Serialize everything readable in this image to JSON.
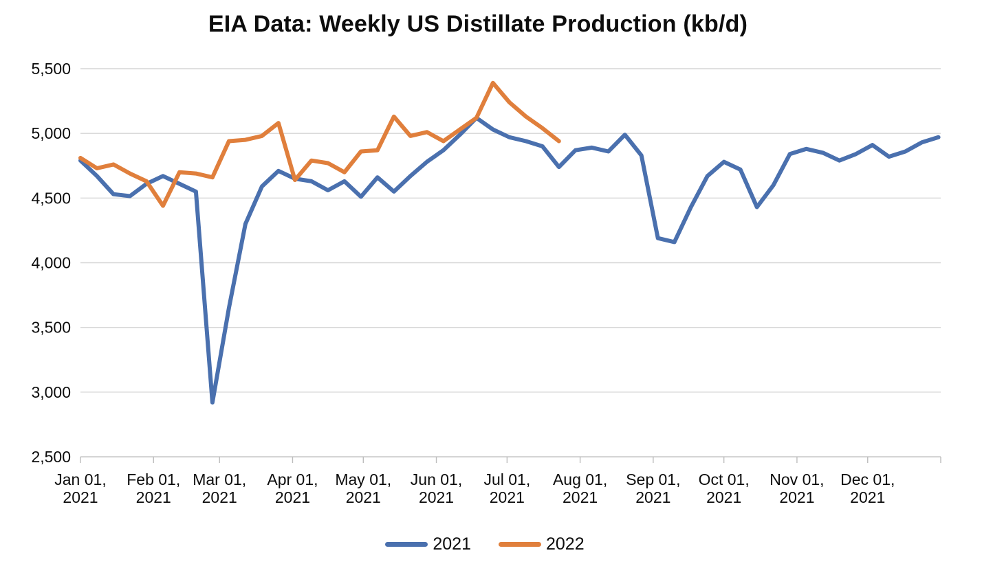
{
  "title": "EIA Data: Weekly US Distillate Production (kb/d)",
  "colors": {
    "series_2021": "#4A70AE",
    "series_2022": "#E07F3C",
    "gridline": "#D6D6D6",
    "axis_line": "#C6C6C6",
    "tick_mark": "#BDBDBD",
    "text": "#0d0d0d",
    "background": "#FFFFFF"
  },
  "chart_data": {
    "type": "line",
    "title": "EIA Data: Weekly US Distillate Production (kb/d)",
    "ylabel": "",
    "xlabel": "",
    "y_axis": {
      "min": 2500,
      "max": 5500,
      "grid": true,
      "ticks": [
        {
          "value": 5500,
          "label": "5,500"
        },
        {
          "value": 5000,
          "label": "5,000"
        },
        {
          "value": 4500,
          "label": "4,500"
        },
        {
          "value": 4000,
          "label": "4,000"
        },
        {
          "value": 3500,
          "label": "3,500"
        },
        {
          "value": 3000,
          "label": "3,000"
        },
        {
          "value": 2500,
          "label": "2,500"
        }
      ]
    },
    "x_axis": {
      "unit": "weeks, plotted by day-of-year",
      "axis_start_day": 0,
      "axis_end_day": 365,
      "ticks": [
        {
          "line1": "Jan 01,",
          "line2": "2021",
          "day": 0
        },
        {
          "line1": "Feb 01,",
          "line2": "2021",
          "day": 31
        },
        {
          "line1": "Mar 01,",
          "line2": "2021",
          "day": 59
        },
        {
          "line1": "Apr 01,",
          "line2": "2021",
          "day": 90
        },
        {
          "line1": "May 01,",
          "line2": "2021",
          "day": 120
        },
        {
          "line1": "Jun 01,",
          "line2": "2021",
          "day": 151
        },
        {
          "line1": "Jul 01,",
          "line2": "2021",
          "day": 181
        },
        {
          "line1": "Aug 01,",
          "line2": "2021",
          "day": 212
        },
        {
          "line1": "Sep 01,",
          "line2": "2021",
          "day": 243
        },
        {
          "line1": "Oct 01,",
          "line2": "2021",
          "day": 273
        },
        {
          "line1": "Nov 01,",
          "line2": "2021",
          "day": 304
        },
        {
          "line1": "Dec 01,",
          "line2": "2021",
          "day": 334
        }
      ]
    },
    "legend": {
      "position": "bottom",
      "entries": [
        "2021",
        "2022"
      ]
    },
    "series": [
      {
        "name": "2021",
        "color": "#4A70AE",
        "week_interval_days": 7,
        "values": [
          4790,
          4670,
          4530,
          4515,
          4610,
          4670,
          4610,
          4550,
          2920,
          3650,
          4300,
          4590,
          4710,
          4650,
          4630,
          4560,
          4630,
          4510,
          4660,
          4550,
          4670,
          4780,
          4870,
          4990,
          5120,
          5030,
          4970,
          4940,
          4900,
          4740,
          4870,
          4890,
          4860,
          4990,
          4830,
          4190,
          4160,
          4430,
          4670,
          4780,
          4720,
          4430,
          4600,
          4840,
          4880,
          4850,
          4790,
          4840,
          4910,
          4820,
          4860,
          4930,
          4970
        ]
      },
      {
        "name": "2022",
        "color": "#E07F3C",
        "week_interval_days": 7,
        "values": [
          4810,
          4730,
          4760,
          4690,
          4630,
          4440,
          4700,
          4690,
          4660,
          4940,
          4950,
          4980,
          5080,
          4640,
          4790,
          4770,
          4700,
          4860,
          4870,
          5130,
          4980,
          5010,
          4940,
          5030,
          5120,
          5390,
          5240,
          5130,
          5040,
          4940
        ]
      }
    ]
  }
}
